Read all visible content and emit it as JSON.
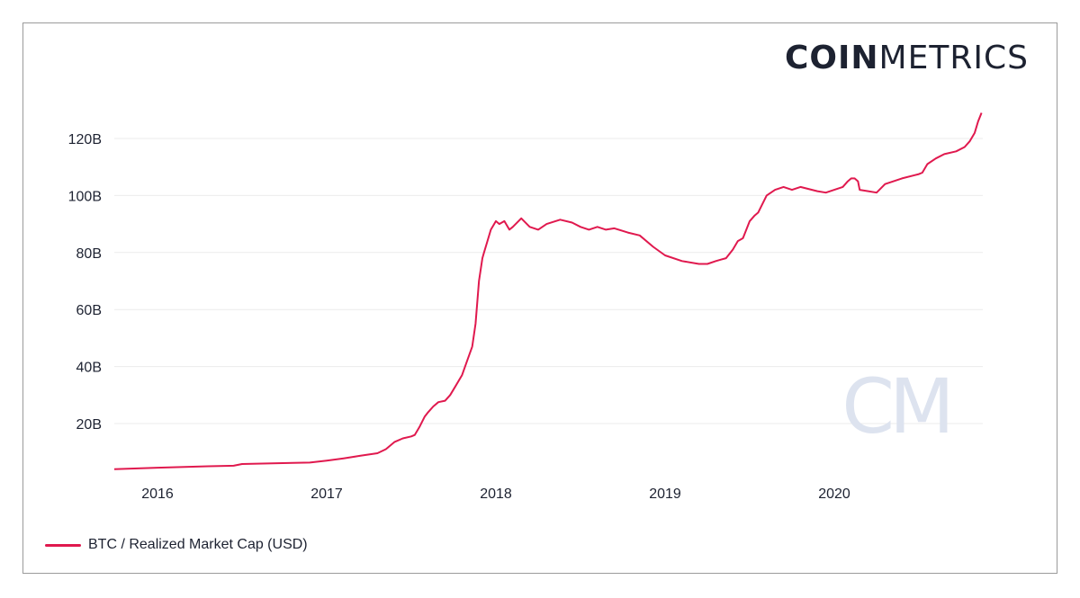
{
  "logo": {
    "bold_part": "COIN",
    "light_part": "METRICS",
    "watermark": "CM"
  },
  "colors": {
    "series": "#e0194e",
    "grid": "#ebebeb",
    "text": "#1d2231",
    "frame": "#9a9a9a"
  },
  "chart_data": {
    "type": "line",
    "title": "",
    "xlabel": "",
    "ylabel": "",
    "x_ticks": [
      "2016",
      "2017",
      "2018",
      "2019",
      "2020"
    ],
    "y_ticks": [
      "20B",
      "40B",
      "60B",
      "80B",
      "100B",
      "120B"
    ],
    "y_tick_values": [
      20,
      40,
      60,
      80,
      100,
      120
    ],
    "ylim": [
      0,
      130
    ],
    "xlim": [
      2015.72,
      2020.87
    ],
    "grid": true,
    "legend": "bottom-left",
    "series": [
      {
        "name": "BTC / Realized Market Cap (USD)",
        "x": [
          2015.72,
          2016.0,
          2016.3,
          2016.45,
          2016.5,
          2016.8,
          2016.9,
          2017.0,
          2017.1,
          2017.2,
          2017.3,
          2017.35,
          2017.4,
          2017.45,
          2017.5,
          2017.52,
          2017.55,
          2017.58,
          2017.6,
          2017.63,
          2017.66,
          2017.7,
          2017.73,
          2017.76,
          2017.8,
          2017.83,
          2017.86,
          2017.88,
          2017.9,
          2017.92,
          2017.93,
          2017.95,
          2017.97,
          2017.99,
          2018.0,
          2018.02,
          2018.05,
          2018.08,
          2018.1,
          2018.15,
          2018.2,
          2018.25,
          2018.3,
          2018.38,
          2018.45,
          2018.5,
          2018.55,
          2018.6,
          2018.65,
          2018.7,
          2018.78,
          2018.85,
          2018.93,
          2019.0,
          2019.1,
          2019.2,
          2019.25,
          2019.3,
          2019.33,
          2019.36,
          2019.4,
          2019.43,
          2019.46,
          2019.5,
          2019.53,
          2019.55,
          2019.6,
          2019.65,
          2019.7,
          2019.75,
          2019.8,
          2019.9,
          2019.95,
          2020.0,
          2020.05,
          2020.08,
          2020.1,
          2020.12,
          2020.14,
          2020.15,
          2020.2,
          2020.25,
          2020.3,
          2020.35,
          2020.4,
          2020.5,
          2020.52,
          2020.55,
          2020.6,
          2020.65,
          2020.72,
          2020.77,
          2020.8,
          2020.83,
          2020.85,
          2020.87
        ],
        "values": [
          4.0,
          4.5,
          5.0,
          5.2,
          5.8,
          6.2,
          6.3,
          7.0,
          7.8,
          8.7,
          9.6,
          11.0,
          13.5,
          14.8,
          15.5,
          16.0,
          19.0,
          22.5,
          24.0,
          26.0,
          27.5,
          28.0,
          30.0,
          33.0,
          37.0,
          42.0,
          47.0,
          55.0,
          70.0,
          78.0,
          80.0,
          84.0,
          88.0,
          90.0,
          91.0,
          90.0,
          91.0,
          88.0,
          89.0,
          92.0,
          89.0,
          88.0,
          90.0,
          91.5,
          90.5,
          89.0,
          88.0,
          89.0,
          88.0,
          88.5,
          87.0,
          86.0,
          82.0,
          79.0,
          77.0,
          76.0,
          76.0,
          77.0,
          77.5,
          78.0,
          81.0,
          84.0,
          85.0,
          91.0,
          93.0,
          94.0,
          100.0,
          102.0,
          103.0,
          102.0,
          103.0,
          101.5,
          101.0,
          102.0,
          103.0,
          105.0,
          106.0,
          106.0,
          105.0,
          102.0,
          101.5,
          101.0,
          104.0,
          105.0,
          106.0,
          107.5,
          108.0,
          111.0,
          113.0,
          114.5,
          115.5,
          117.0,
          119.0,
          122.0,
          126.0,
          129.0
        ]
      }
    ]
  }
}
